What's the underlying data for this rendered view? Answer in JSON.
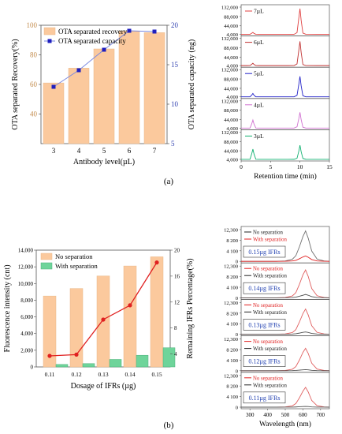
{
  "panel_labels": [
    "(a)",
    "(b)"
  ],
  "chart_data": [
    {
      "type": "bar",
      "subtype": "bar-with-line-secondary-axis",
      "panel": "(a)",
      "title": "",
      "xlabel": "Antibody level(µL)",
      "ylabel": "OTA separated Recovery(%)",
      "y2label": "OTA separated capacity (ng)",
      "categories": [
        "3",
        "4",
        "5",
        "6",
        "7"
      ],
      "ylim": [
        20,
        100
      ],
      "yticks": [
        "40",
        "60",
        "80",
        "100"
      ],
      "y2lim": [
        5,
        20
      ],
      "y2ticks": [
        "5",
        "10",
        "15",
        "20"
      ],
      "legend": "top-left",
      "series": [
        {
          "name": "OTA separated recovery",
          "kind": "bar",
          "axis": "y",
          "color": "#fbc99d",
          "values": [
            61,
            71,
            84,
            96,
            95
          ]
        },
        {
          "name": "OTA separated capacity",
          "kind": "line",
          "axis": "y2",
          "color": "#1f1fbf",
          "values": [
            12.2,
            14.3,
            16.9,
            19.3,
            19.2
          ]
        }
      ]
    },
    {
      "type": "line",
      "subtype": "stacked-chromatograms",
      "panel": "(a)",
      "title": "",
      "xlabel": "Retention time (min)",
      "ylabel": "",
      "xlim": [
        0,
        15
      ],
      "xticks": [
        "0",
        "5",
        "10",
        "15"
      ],
      "ylim": [
        0,
        132000
      ],
      "yticks": [
        "4,000",
        "44,000",
        "88,000",
        "132,000"
      ],
      "x": [
        0,
        1,
        1.5,
        1.8,
        2,
        2.2,
        2.5,
        3,
        5,
        8,
        9,
        9.5,
        9.8,
        10,
        10.2,
        10.5,
        11,
        13,
        15
      ],
      "series": [
        {
          "name": "7µL",
          "color": "#e04040",
          "values": [
            4000,
            4000,
            4100,
            9000,
            13000,
            8000,
            4200,
            4000,
            4000,
            4000,
            4200,
            12000,
            80000,
            125000,
            70000,
            10000,
            4200,
            4000,
            4000
          ]
        },
        {
          "name": "6µL",
          "color": "#c03030",
          "values": [
            4000,
            4000,
            4100,
            10000,
            15000,
            9000,
            4200,
            4000,
            4000,
            4000,
            4200,
            12000,
            75000,
            118000,
            66000,
            9000,
            4200,
            4000,
            4000
          ]
        },
        {
          "name": "5µL",
          "color": "#2020c8",
          "values": [
            4000,
            4000,
            4100,
            12000,
            20000,
            11000,
            4300,
            4000,
            4000,
            4000,
            4200,
            11000,
            62000,
            100000,
            56000,
            9000,
            4200,
            4000,
            4000
          ]
        },
        {
          "name": "4µL",
          "color": "#d070d0",
          "values": [
            4000,
            4000,
            4200,
            24000,
            42000,
            22000,
            4500,
            4000,
            4000,
            4000,
            4200,
            10000,
            48000,
            78000,
            44000,
            8000,
            4200,
            4000,
            4000
          ]
        },
        {
          "name": "3µL",
          "color": "#10b070",
          "values": [
            4000,
            4000,
            4200,
            30000,
            52000,
            28000,
            4500,
            4000,
            4000,
            4000,
            4200,
            9000,
            42000,
            70000,
            40000,
            8000,
            4200,
            4000,
            4000
          ]
        }
      ]
    },
    {
      "type": "bar",
      "subtype": "grouped-bar-with-line-secondary-axis",
      "panel": "(b)",
      "title": "",
      "xlabel": "Dosage of IFRs (µg)",
      "ylabel": "Fluorescence intensity (cnt)",
      "y2label": "Remaining IFRs Percentage(%)",
      "categories": [
        "0.11",
        "0.12",
        "0.13",
        "0.14",
        "0.15"
      ],
      "ylim": [
        0,
        14000
      ],
      "yticks": [
        "0",
        "2,000",
        "4,000",
        "6,000",
        "8,000",
        "10,000",
        "12,000",
        "14,000"
      ],
      "y2lim": [
        2,
        20
      ],
      "y2ticks": [
        "4",
        "8",
        "12",
        "16",
        "20"
      ],
      "legend": "top-left",
      "series": [
        {
          "name": "No separation",
          "kind": "bar",
          "axis": "y",
          "color": "#fbc99d",
          "values": [
            8500,
            9400,
            10900,
            12100,
            13200
          ]
        },
        {
          "name": "With separation",
          "kind": "bar",
          "axis": "y",
          "color": "#6ed49a",
          "values": [
            300,
            400,
            900,
            1400,
            2300
          ]
        },
        {
          "name": "",
          "kind": "line",
          "axis": "y2",
          "color": "#e02020",
          "values": [
            3.7,
            3.9,
            9.3,
            11.5,
            18.1
          ]
        }
      ]
    },
    {
      "type": "line",
      "subtype": "stacked-fluorescence-spectra",
      "panel": "(b)",
      "title": "",
      "xlabel": "Wavelength (nm)",
      "ylabel": "",
      "xlim": [
        250,
        750
      ],
      "xticks": [
        "300",
        "400",
        "500",
        "600",
        "700"
      ],
      "ylim": [
        0,
        12300
      ],
      "yticks": [
        "0",
        "4 100",
        "8 200",
        "12,300"
      ],
      "x": [
        250,
        450,
        500,
        540,
        560,
        580,
        600,
        615,
        630,
        650,
        680,
        720,
        750
      ],
      "panels": [
        {
          "label": "0.15µg  IFRs",
          "legend": [
            "No separation",
            "With separation"
          ],
          "legend_colors": [
            "#222222",
            "#e02020"
          ],
          "series": [
            {
              "name": "No separation",
              "color": "#707070",
              "values": [
                0,
                0,
                150,
                800,
                2200,
                5600,
                9600,
                11800,
                9000,
                4000,
                900,
                150,
                0
              ]
            },
            {
              "name": "With separation",
              "color": "#e02020",
              "values": [
                0,
                0,
                30,
                150,
                400,
                1000,
                1700,
                2100,
                1600,
                700,
                160,
                30,
                0
              ]
            }
          ]
        },
        {
          "label": "0.14µg  IFRs",
          "legend": [
            "No separation",
            "With separation"
          ],
          "legend_colors": [
            "#e02020",
            "#222222"
          ],
          "series": [
            {
              "name": "No separation",
              "color": "#e06060",
              "values": [
                0,
                0,
                130,
                700,
                2000,
                5200,
                8900,
                10800,
                8300,
                3600,
                800,
                130,
                0
              ]
            },
            {
              "name": "With separation",
              "color": "#505050",
              "values": [
                0,
                0,
                20,
                100,
                250,
                600,
                1000,
                1300,
                1000,
                450,
                100,
                20,
                0
              ]
            }
          ]
        },
        {
          "label": "0.13µg  IFRs",
          "legend": [
            "No separation",
            "With separation"
          ],
          "legend_colors": [
            "#e02020",
            "#222222"
          ],
          "series": [
            {
              "name": "No separation",
              "color": "#e06060",
              "values": [
                0,
                0,
                120,
                650,
                1800,
                4700,
                8000,
                9800,
                7500,
                3300,
                750,
                120,
                0
              ]
            },
            {
              "name": "With separation",
              "color": "#505050",
              "values": [
                0,
                0,
                15,
                80,
                200,
                450,
                750,
                900,
                700,
                320,
                80,
                15,
                0
              ]
            }
          ]
        },
        {
          "label": "0.12µg  IFRs",
          "legend": [
            "No separation",
            "With separation"
          ],
          "legend_colors": [
            "#e02020",
            "#222222"
          ],
          "series": [
            {
              "name": "No separation",
              "color": "#e06060",
              "values": [
                0,
                0,
                110,
                580,
                1600,
                4100,
                7100,
                8700,
                6700,
                2900,
                650,
                100,
                0
              ]
            },
            {
              "name": "With separation",
              "color": "#505050",
              "values": [
                0,
                0,
                10,
                40,
                100,
                220,
                350,
                420,
                330,
                150,
                40,
                10,
                0
              ]
            }
          ]
        },
        {
          "label": "0.11µg  IFRs",
          "legend": [
            "No separation",
            "With separation"
          ],
          "legend_colors": [
            "#e02020",
            "#222222"
          ],
          "series": [
            {
              "name": "No separation",
              "color": "#e06060",
              "values": [
                0,
                0,
                100,
                520,
                1400,
                3600,
                6200,
                7700,
                5900,
                2600,
                580,
                90,
                0
              ]
            },
            {
              "name": "With separation",
              "color": "#505050",
              "values": [
                0,
                0,
                8,
                30,
                80,
                160,
                260,
                300,
                240,
                110,
                30,
                8,
                0
              ]
            }
          ]
        }
      ]
    }
  ]
}
